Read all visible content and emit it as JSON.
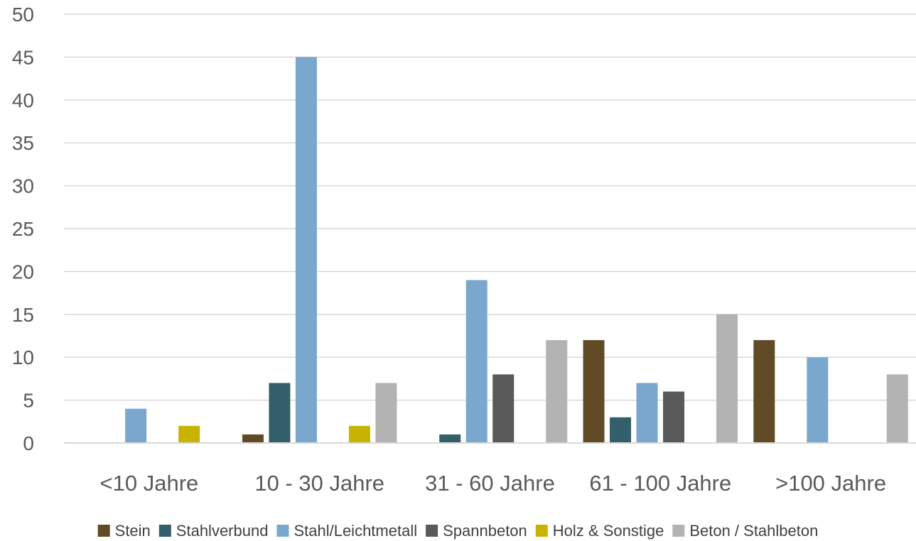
{
  "chart_data": {
    "type": "bar",
    "categories": [
      "<10 Jahre",
      "10 - 30 Jahre",
      "31 - 60 Jahre",
      "61 - 100 Jahre",
      ">100 Jahre"
    ],
    "series": [
      {
        "name": "Stein",
        "color": "#614b27",
        "values": [
          0,
          1,
          0,
          12,
          12
        ]
      },
      {
        "name": "Stahlverbund",
        "color": "#335f6b",
        "values": [
          0,
          7,
          1,
          3,
          0
        ]
      },
      {
        "name": "Stahl/Leichtmetall",
        "color": "#7aa7ce",
        "values": [
          4,
          45,
          19,
          7,
          10
        ]
      },
      {
        "name": "Spannbeton",
        "color": "#595959",
        "values": [
          0,
          0,
          8,
          6,
          0
        ]
      },
      {
        "name": "Holz & Sonstige",
        "color": "#c8b400",
        "values": [
          2,
          2,
          0,
          0,
          0
        ]
      },
      {
        "name": "Beton / Stahlbeton",
        "color": "#b3b3b3",
        "values": [
          0,
          7,
          12,
          15,
          8
        ]
      }
    ],
    "yticks": [
      "0",
      "5",
      "10",
      "15",
      "20",
      "25",
      "30",
      "35",
      "40",
      "45",
      "50"
    ],
    "ylim": [
      0,
      50
    ],
    "grid": true,
    "legend_position": "bottom"
  }
}
